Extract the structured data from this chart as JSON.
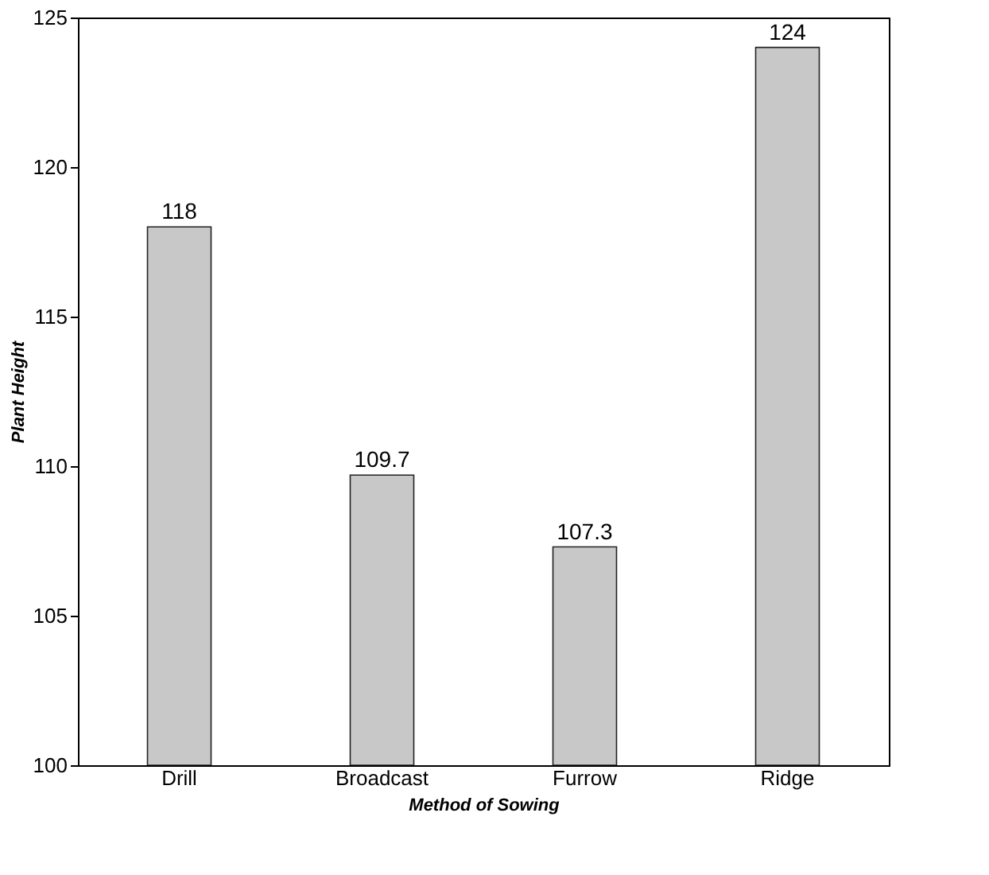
{
  "chart_data": {
    "type": "bar",
    "xlabel": "Method of Sowing",
    "ylabel": "Plant Height",
    "categories": [
      "Drill",
      "Broadcast",
      "Furrow",
      "Ridge"
    ],
    "values": [
      118,
      109.7,
      107.3,
      124
    ],
    "color": "#c8c8c8",
    "ylim": [
      100,
      125
    ],
    "yticks": [
      100,
      105,
      110,
      115,
      120,
      125
    ],
    "data_labels": true,
    "grid": false
  }
}
